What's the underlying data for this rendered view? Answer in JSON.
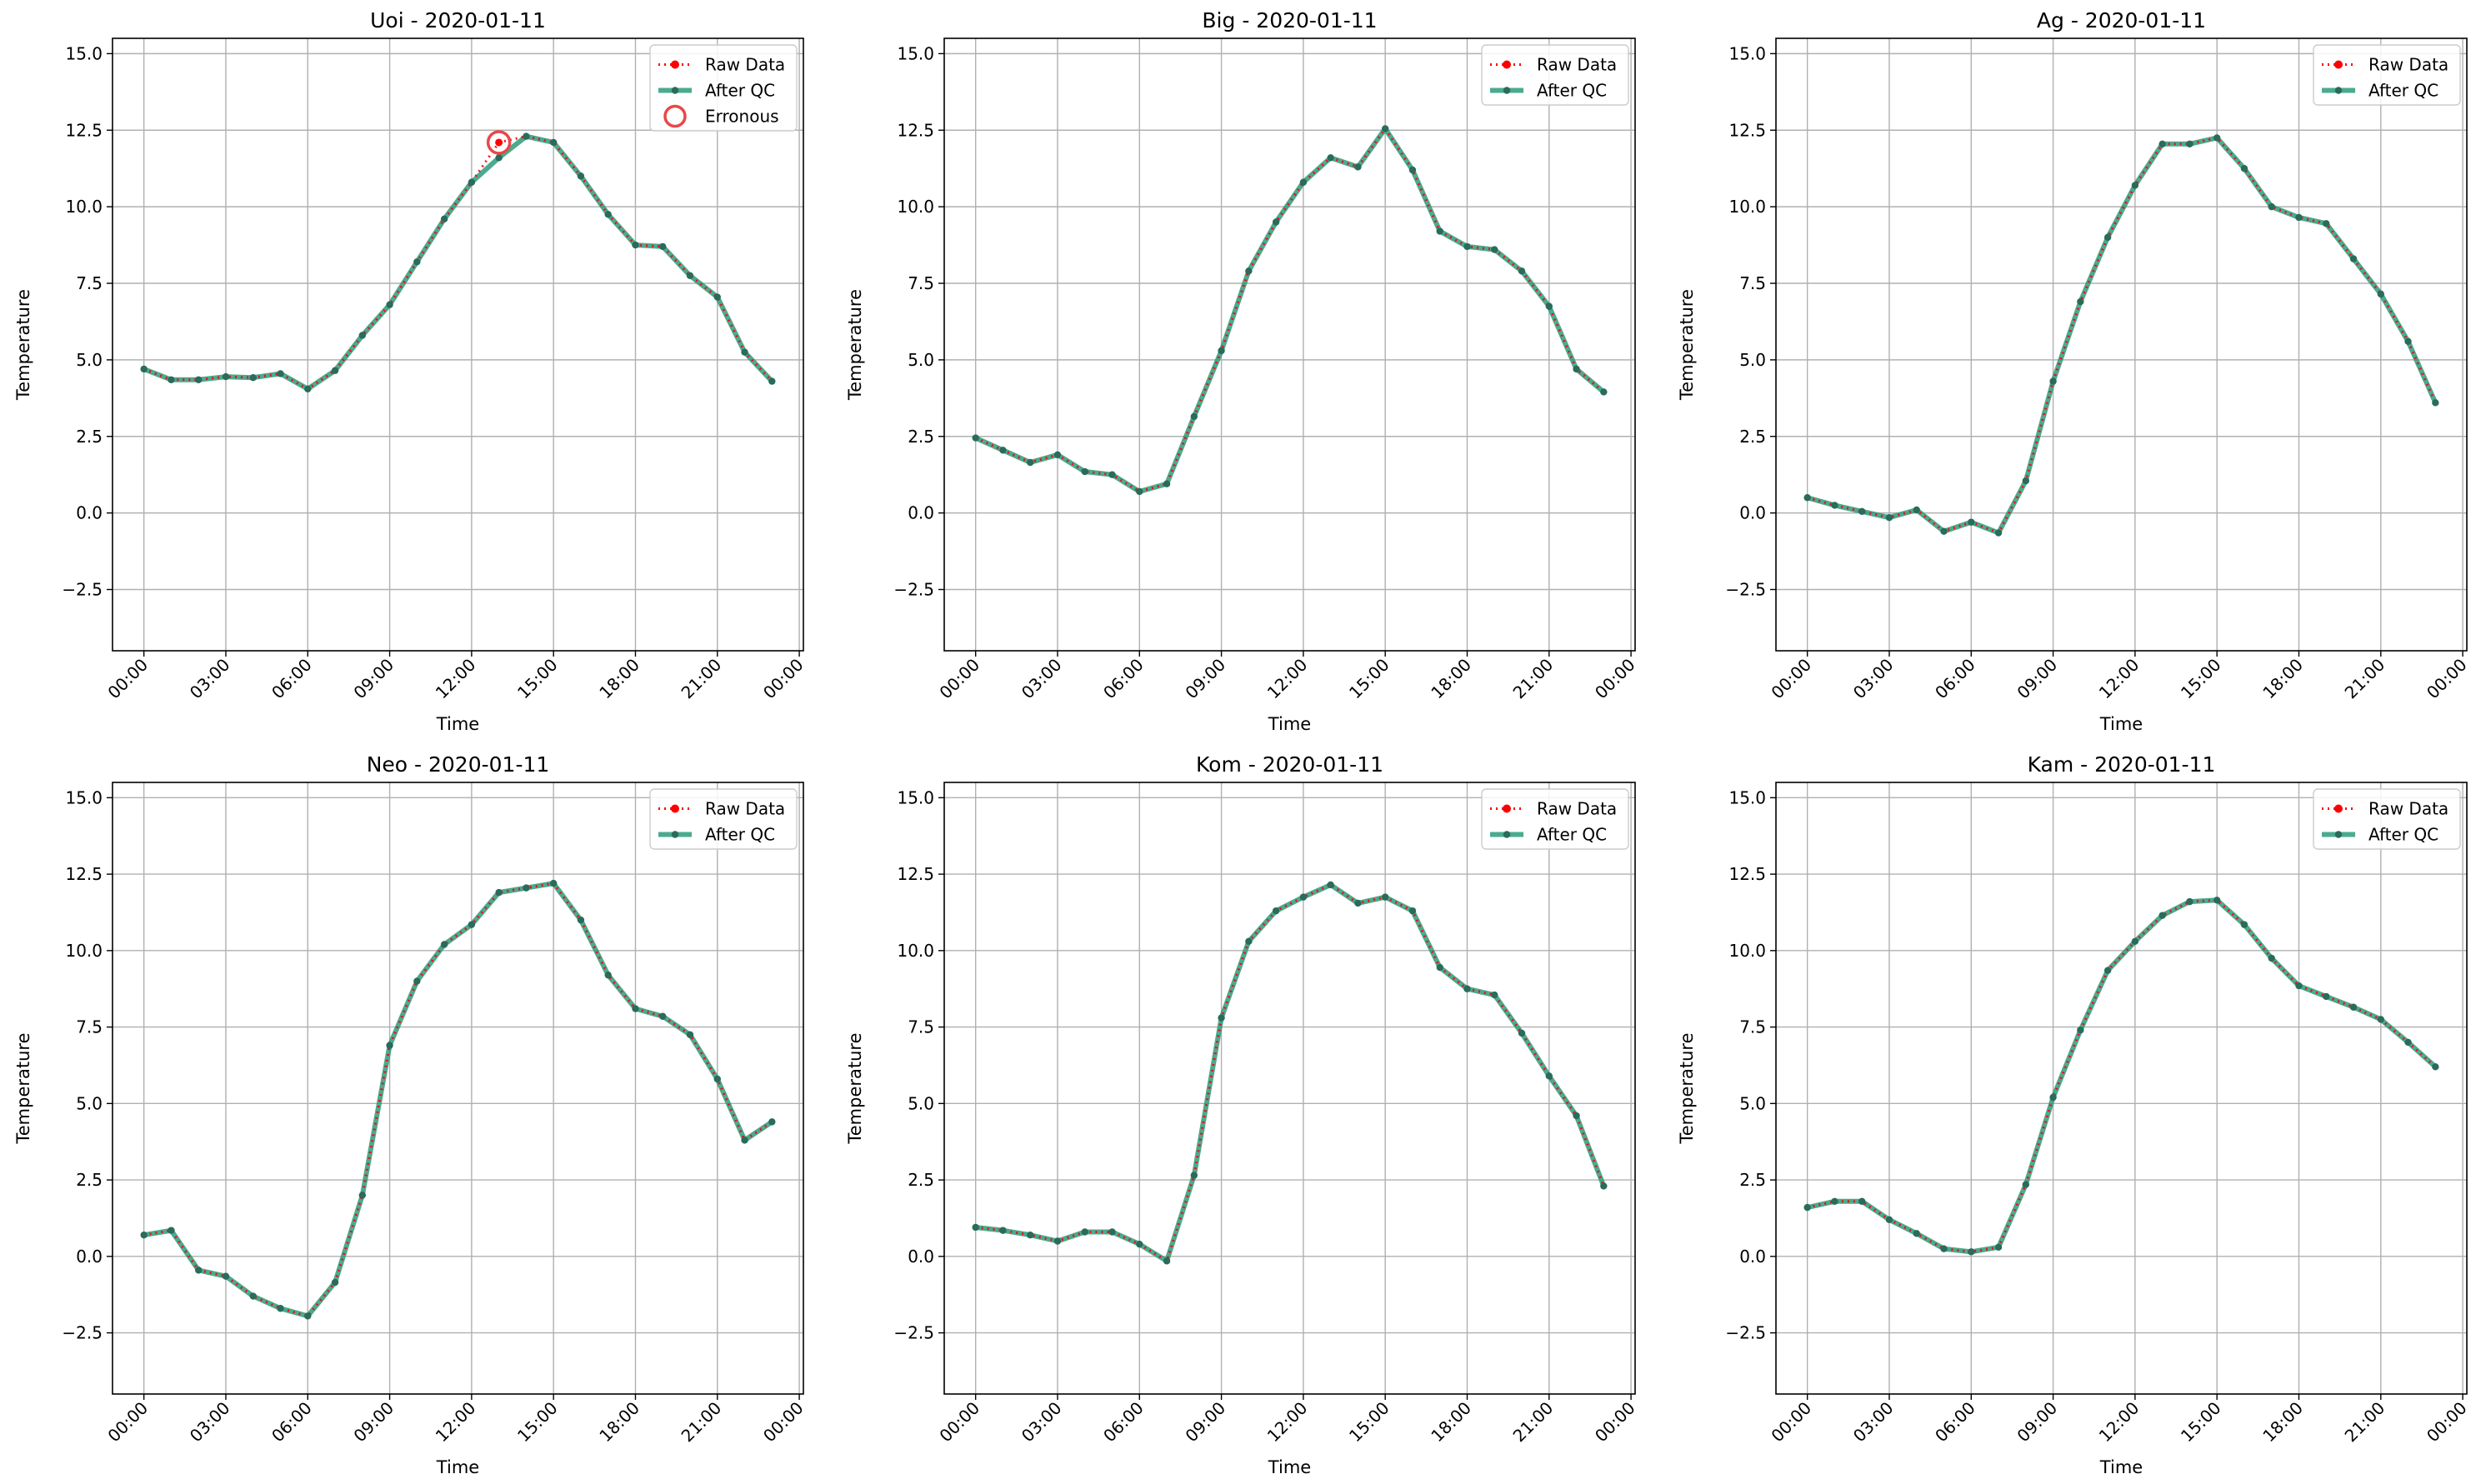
{
  "figure": {
    "background": "#ffffff",
    "colors": {
      "raw": "#ff0000",
      "qc": "#2b9b7b",
      "qc_marker": "#2a6b5b",
      "erroneous": "#e8474a",
      "grid": "#b0b0b0"
    }
  },
  "chart_data": [
    {
      "type": "line",
      "title": "Uoi - 2020-01-11",
      "xlabel": "Time",
      "ylabel": "Temperature",
      "ylim": [
        -4.5,
        15.5
      ],
      "yticks": [
        "−2.5",
        "0.0",
        "2.5",
        "5.0",
        "7.5",
        "10.0",
        "12.5",
        "15.0"
      ],
      "xticks": [
        "00:00",
        "03:00",
        "06:00",
        "09:00",
        "12:00",
        "15:00",
        "18:00",
        "21:00",
        "00:00"
      ],
      "x": [
        0,
        1,
        2,
        3,
        4,
        5,
        6,
        7,
        8,
        9,
        10,
        11,
        12,
        13,
        14,
        15,
        16,
        17,
        18,
        19,
        20,
        21,
        22,
        23
      ],
      "grid": true,
      "legend_position": "upper right",
      "legend": [
        "Raw Data",
        "After QC",
        "Erronous"
      ],
      "series": [
        {
          "name": "Raw Data",
          "values": [
            4.7,
            4.35,
            4.35,
            4.45,
            4.42,
            4.55,
            4.05,
            4.65,
            5.8,
            6.8,
            8.2,
            9.6,
            10.8,
            12.1,
            12.3,
            12.1,
            11.0,
            9.75,
            8.75,
            8.7,
            7.75,
            7.05,
            5.25,
            4.3
          ]
        },
        {
          "name": "After QC",
          "values": [
            4.7,
            4.35,
            4.35,
            4.45,
            4.42,
            4.55,
            4.05,
            4.65,
            5.8,
            6.8,
            8.2,
            9.6,
            10.8,
            11.6,
            12.3,
            12.1,
            11.0,
            9.75,
            8.75,
            8.7,
            7.75,
            7.05,
            5.25,
            4.3
          ]
        },
        {
          "name": "Erronous",
          "points": [
            {
              "x": 13,
              "y": 12.1
            }
          ]
        }
      ]
    },
    {
      "type": "line",
      "title": "Big - 2020-01-11",
      "xlabel": "Time",
      "ylabel": "Temperature",
      "ylim": [
        -4.5,
        15.5
      ],
      "yticks": [
        "−2.5",
        "0.0",
        "2.5",
        "5.0",
        "7.5",
        "10.0",
        "12.5",
        "15.0"
      ],
      "xticks": [
        "00:00",
        "03:00",
        "06:00",
        "09:00",
        "12:00",
        "15:00",
        "18:00",
        "21:00",
        "00:00"
      ],
      "x": [
        0,
        1,
        2,
        3,
        4,
        5,
        6,
        7,
        8,
        9,
        10,
        11,
        12,
        13,
        14,
        15,
        16,
        17,
        18,
        19,
        20,
        21,
        22,
        23
      ],
      "grid": true,
      "legend_position": "upper right",
      "legend": [
        "Raw Data",
        "After QC"
      ],
      "series": [
        {
          "name": "Raw Data",
          "values": [
            2.45,
            2.05,
            1.65,
            1.9,
            1.35,
            1.25,
            0.7,
            0.95,
            3.15,
            5.3,
            7.9,
            9.5,
            10.8,
            11.6,
            11.3,
            12.55,
            11.2,
            9.2,
            8.7,
            8.6,
            7.9,
            6.75,
            4.7,
            3.95
          ]
        },
        {
          "name": "After QC",
          "values": [
            2.45,
            2.05,
            1.65,
            1.9,
            1.35,
            1.25,
            0.7,
            0.95,
            3.15,
            5.3,
            7.9,
            9.5,
            10.8,
            11.6,
            11.3,
            12.55,
            11.2,
            9.2,
            8.7,
            8.6,
            7.9,
            6.75,
            4.7,
            3.95
          ]
        }
      ]
    },
    {
      "type": "line",
      "title": "Ag - 2020-01-11",
      "xlabel": "Time",
      "ylabel": "Temperature",
      "ylim": [
        -4.5,
        15.5
      ],
      "yticks": [
        "−2.5",
        "0.0",
        "2.5",
        "5.0",
        "7.5",
        "10.0",
        "12.5",
        "15.0"
      ],
      "xticks": [
        "00:00",
        "03:00",
        "06:00",
        "09:00",
        "12:00",
        "15:00",
        "18:00",
        "21:00",
        "00:00"
      ],
      "x": [
        0,
        1,
        2,
        3,
        4,
        5,
        6,
        7,
        8,
        9,
        10,
        11,
        12,
        13,
        14,
        15,
        16,
        17,
        18,
        19,
        20,
        21,
        22,
        23
      ],
      "grid": true,
      "legend_position": "upper right",
      "legend": [
        "Raw Data",
        "After QC"
      ],
      "series": [
        {
          "name": "Raw Data",
          "values": [
            0.5,
            0.25,
            0.05,
            -0.15,
            0.1,
            -0.6,
            -0.3,
            -0.65,
            1.05,
            4.3,
            6.9,
            9.0,
            10.7,
            12.05,
            12.05,
            12.25,
            11.25,
            10.0,
            9.65,
            9.45,
            8.3,
            7.15,
            5.6,
            3.6
          ]
        },
        {
          "name": "After QC",
          "values": [
            0.5,
            0.25,
            0.05,
            -0.15,
            0.1,
            -0.6,
            -0.3,
            -0.65,
            1.05,
            4.3,
            6.9,
            9.0,
            10.7,
            12.05,
            12.05,
            12.25,
            11.25,
            10.0,
            9.65,
            9.45,
            8.3,
            7.15,
            5.6,
            3.6
          ]
        }
      ]
    },
    {
      "type": "line",
      "title": "Neo - 2020-01-11",
      "xlabel": "Time",
      "ylabel": "Temperature",
      "ylim": [
        -4.5,
        15.5
      ],
      "yticks": [
        "−2.5",
        "0.0",
        "2.5",
        "5.0",
        "7.5",
        "10.0",
        "12.5",
        "15.0"
      ],
      "xticks": [
        "00:00",
        "03:00",
        "06:00",
        "09:00",
        "12:00",
        "15:00",
        "18:00",
        "21:00",
        "00:00"
      ],
      "x": [
        0,
        1,
        2,
        3,
        4,
        5,
        6,
        7,
        8,
        9,
        10,
        11,
        12,
        13,
        14,
        15,
        16,
        17,
        18,
        19,
        20,
        21,
        22,
        23
      ],
      "grid": true,
      "legend_position": "upper right",
      "legend": [
        "Raw Data",
        "After QC"
      ],
      "series": [
        {
          "name": "Raw Data",
          "values": [
            0.7,
            0.85,
            -0.45,
            -0.65,
            -1.3,
            -1.7,
            -1.95,
            -0.85,
            2.0,
            6.9,
            9.0,
            10.2,
            10.85,
            11.9,
            12.05,
            12.2,
            11.0,
            9.2,
            8.1,
            7.85,
            7.25,
            5.8,
            3.8,
            4.4
          ]
        },
        {
          "name": "After QC",
          "values": [
            0.7,
            0.85,
            -0.45,
            -0.65,
            -1.3,
            -1.7,
            -1.95,
            -0.85,
            2.0,
            6.9,
            9.0,
            10.2,
            10.85,
            11.9,
            12.05,
            12.2,
            11.0,
            9.2,
            8.1,
            7.85,
            7.25,
            5.8,
            3.8,
            4.4
          ]
        }
      ]
    },
    {
      "type": "line",
      "title": "Kom - 2020-01-11",
      "xlabel": "Time",
      "ylabel": "Temperature",
      "ylim": [
        -4.5,
        15.5
      ],
      "yticks": [
        "−2.5",
        "0.0",
        "2.5",
        "5.0",
        "7.5",
        "10.0",
        "12.5",
        "15.0"
      ],
      "xticks": [
        "00:00",
        "03:00",
        "06:00",
        "09:00",
        "12:00",
        "15:00",
        "18:00",
        "21:00",
        "00:00"
      ],
      "x": [
        0,
        1,
        2,
        3,
        4,
        5,
        6,
        7,
        8,
        9,
        10,
        11,
        12,
        13,
        14,
        15,
        16,
        17,
        18,
        19,
        20,
        21,
        22,
        23
      ],
      "grid": true,
      "legend_position": "upper right",
      "legend": [
        "Raw Data",
        "After QC"
      ],
      "series": [
        {
          "name": "Raw Data",
          "values": [
            0.95,
            0.85,
            0.7,
            0.5,
            0.8,
            0.8,
            0.4,
            -0.15,
            2.65,
            7.8,
            10.3,
            11.3,
            11.75,
            12.15,
            11.55,
            11.75,
            11.3,
            9.45,
            8.75,
            8.55,
            7.3,
            5.9,
            4.6,
            2.3
          ]
        },
        {
          "name": "After QC",
          "values": [
            0.95,
            0.85,
            0.7,
            0.5,
            0.8,
            0.8,
            0.4,
            -0.15,
            2.65,
            7.8,
            10.3,
            11.3,
            11.75,
            12.15,
            11.55,
            11.75,
            11.3,
            9.45,
            8.75,
            8.55,
            7.3,
            5.9,
            4.6,
            2.3
          ]
        }
      ]
    },
    {
      "type": "line",
      "title": "Kam - 2020-01-11",
      "xlabel": "Time",
      "ylabel": "Temperature",
      "ylim": [
        -4.5,
        15.5
      ],
      "yticks": [
        "−2.5",
        "0.0",
        "2.5",
        "5.0",
        "7.5",
        "10.0",
        "12.5",
        "15.0"
      ],
      "xticks": [
        "00:00",
        "03:00",
        "06:00",
        "09:00",
        "12:00",
        "15:00",
        "18:00",
        "21:00",
        "00:00"
      ],
      "x": [
        0,
        1,
        2,
        3,
        4,
        5,
        6,
        7,
        8,
        9,
        10,
        11,
        12,
        13,
        14,
        15,
        16,
        17,
        18,
        19,
        20,
        21,
        22,
        23
      ],
      "grid": true,
      "legend_position": "upper right",
      "legend": [
        "Raw Data",
        "After QC"
      ],
      "series": [
        {
          "name": "Raw Data",
          "values": [
            1.6,
            1.8,
            1.8,
            1.2,
            0.75,
            0.25,
            0.15,
            0.3,
            2.35,
            5.2,
            7.4,
            9.35,
            10.3,
            11.15,
            11.6,
            11.65,
            10.85,
            9.75,
            8.85,
            8.5,
            8.15,
            7.75,
            7.0,
            6.2
          ]
        },
        {
          "name": "After QC",
          "values": [
            1.6,
            1.8,
            1.8,
            1.2,
            0.75,
            0.25,
            0.15,
            0.3,
            2.35,
            5.2,
            7.4,
            9.35,
            10.3,
            11.15,
            11.6,
            11.65,
            10.85,
            9.75,
            8.85,
            8.5,
            8.15,
            7.75,
            7.0,
            6.2
          ]
        }
      ]
    }
  ]
}
